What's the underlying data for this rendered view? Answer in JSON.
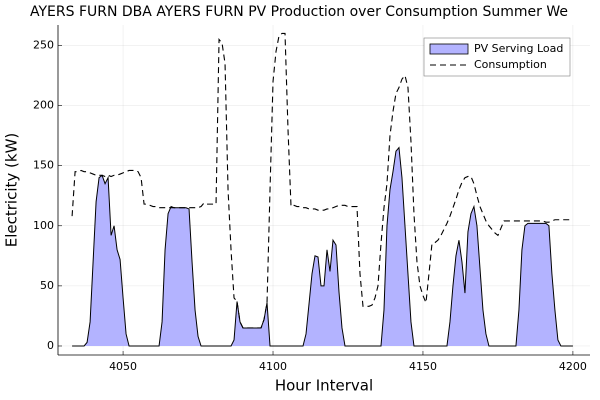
{
  "chart_data": {
    "type": "area-line",
    "title": "AYERS FURN DBA AYERS FURN PV Production over Consumption Summer We",
    "x_label": "Hour Interval",
    "y_label": "Electricity (kW)",
    "xlim": [
      4028.3,
      4205.7
    ],
    "ylim": [
      -7.5,
      267
    ],
    "xticks": [
      4050,
      4100,
      4150,
      4200
    ],
    "yticks": [
      0,
      50,
      100,
      150,
      200,
      250
    ],
    "grid": true,
    "legend": "top-right",
    "x": [
      4033,
      4034,
      4035,
      4036,
      4037,
      4038,
      4039,
      4040,
      4041,
      4042,
      4043,
      4044,
      4045,
      4046,
      4047,
      4048,
      4049,
      4050,
      4051,
      4052,
      4053,
      4054,
      4055,
      4056,
      4057,
      4058,
      4059,
      4060,
      4061,
      4062,
      4063,
      4064,
      4065,
      4066,
      4067,
      4068,
      4069,
      4070,
      4071,
      4072,
      4073,
      4074,
      4075,
      4076,
      4077,
      4078,
      4079,
      4080,
      4081,
      4082,
      4083,
      4084,
      4085,
      4086,
      4087,
      4088,
      4089,
      4090,
      4091,
      4092,
      4093,
      4094,
      4095,
      4096,
      4097,
      4098,
      4099,
      4100,
      4101,
      4102,
      4103,
      4104,
      4105,
      4106,
      4107,
      4108,
      4109,
      4110,
      4111,
      4112,
      4113,
      4114,
      4115,
      4116,
      4117,
      4118,
      4119,
      4120,
      4121,
      4122,
      4123,
      4124,
      4125,
      4126,
      4127,
      4128,
      4129,
      4130,
      4131,
      4132,
      4133,
      4134,
      4135,
      4136,
      4137,
      4138,
      4139,
      4140,
      4141,
      4142,
      4143,
      4144,
      4145,
      4146,
      4147,
      4148,
      4149,
      4150,
      4151,
      4152,
      4153,
      4154,
      4155,
      4156,
      4157,
      4158,
      4159,
      4160,
      4161,
      4162,
      4163,
      4164,
      4165,
      4166,
      4167,
      4168,
      4169,
      4170,
      4171,
      4172,
      4173,
      4174,
      4175,
      4176,
      4177,
      4178,
      4179,
      4180,
      4181,
      4182,
      4183,
      4184,
      4185,
      4186,
      4187,
      4188,
      4189,
      4190,
      4191,
      4192,
      4193,
      4194,
      4195,
      4196,
      4197,
      4198,
      4199,
      4200
    ],
    "series": [
      {
        "name": "PV Serving Load",
        "style": "area",
        "color": "#b3b3ff",
        "line_color": "#000000",
        "values": [
          0,
          0,
          0,
          0,
          0,
          3,
          20,
          70,
          120,
          140,
          142,
          135,
          140,
          92,
          100,
          80,
          72,
          40,
          10,
          0,
          0,
          0,
          0,
          0,
          0,
          0,
          0,
          0,
          0,
          0,
          20,
          80,
          110,
          116,
          115,
          115,
          115,
          115,
          115,
          114,
          70,
          30,
          8,
          0,
          0,
          0,
          0,
          0,
          0,
          0,
          0,
          0,
          0,
          0,
          5,
          37,
          20,
          15,
          15,
          15,
          15,
          15,
          15,
          15,
          22,
          36,
          0,
          0,
          0,
          0,
          0,
          0,
          0,
          0,
          0,
          0,
          0,
          0,
          10,
          35,
          60,
          75,
          74,
          50,
          50,
          80,
          62,
          88,
          84,
          45,
          15,
          0,
          0,
          0,
          0,
          0,
          0,
          0,
          0,
          0,
          0,
          0,
          0,
          0,
          30,
          100,
          130,
          145,
          162,
          165,
          140,
          100,
          60,
          20,
          0,
          0,
          0,
          0,
          0,
          0,
          0,
          0,
          0,
          0,
          0,
          0,
          20,
          50,
          75,
          88,
          70,
          44,
          95,
          110,
          116,
          100,
          65,
          30,
          10,
          0,
          0,
          0,
          0,
          0,
          0,
          0,
          0,
          0,
          0,
          30,
          80,
          100,
          102,
          102,
          102,
          102,
          102,
          102,
          102,
          100,
          60,
          30,
          5,
          0,
          0,
          0,
          0,
          0
        ]
      },
      {
        "name": "Consumption",
        "style": "dashed",
        "color": "#000000",
        "values": [
          108,
          145,
          145,
          146,
          145,
          145,
          144,
          143,
          142,
          142,
          142,
          141,
          142,
          141,
          142,
          142,
          143,
          144,
          145,
          146,
          146,
          146,
          145,
          140,
          118,
          118,
          117,
          116,
          116,
          115,
          115,
          115,
          115,
          115,
          115,
          115,
          115,
          115,
          115,
          115,
          115,
          115,
          115,
          116,
          119,
          118,
          118,
          118,
          118,
          255,
          252,
          235,
          130,
          80,
          40,
          37,
          20,
          15,
          15,
          15,
          15,
          15,
          15,
          15,
          22,
          36,
          130,
          220,
          245,
          258,
          260,
          260,
          180,
          116,
          117,
          116,
          116,
          115,
          115,
          114,
          114,
          114,
          113,
          113,
          113,
          114,
          114,
          115,
          116,
          117,
          117,
          117,
          116,
          116,
          116,
          116,
          60,
          33,
          33,
          33,
          34,
          40,
          50,
          85,
          115,
          135,
          175,
          195,
          210,
          215,
          222,
          225,
          215,
          170,
          110,
          70,
          50,
          42,
          36,
          60,
          85,
          86,
          88,
          92,
          97,
          102,
          108,
          115,
          122,
          130,
          136,
          140,
          141,
          141,
          135,
          125,
          116,
          110,
          104,
          100,
          97,
          94,
          92,
          98,
          104,
          104,
          104,
          104,
          104,
          104,
          104,
          104,
          104,
          104,
          104,
          104,
          104,
          104,
          103,
          103,
          104,
          105,
          105,
          105,
          105,
          105,
          105,
          105
        ]
      }
    ]
  }
}
